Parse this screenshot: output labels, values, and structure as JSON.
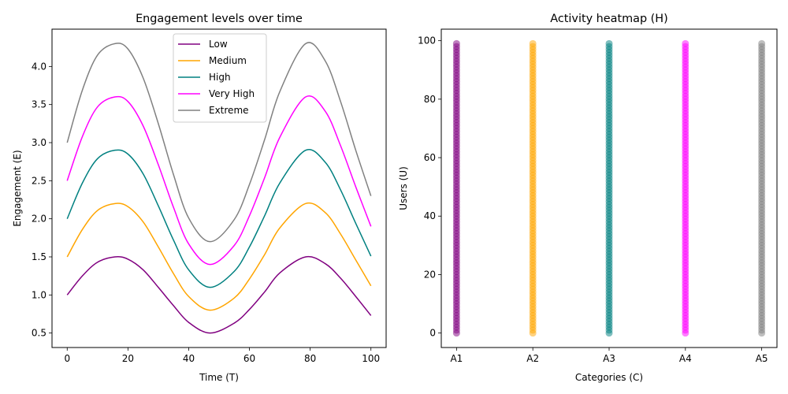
{
  "chart_data": [
    {
      "type": "line",
      "title": "Engagement levels over time",
      "xlabel": "Time (T)",
      "ylabel": "Engagement (E)",
      "xlim": [
        -5,
        105
      ],
      "ylim": [
        0.31,
        4.49
      ],
      "xticks": [
        0,
        20,
        40,
        60,
        80,
        100
      ],
      "yticks": [
        0.5,
        1.0,
        1.5,
        2.0,
        2.5,
        3.0,
        3.5,
        4.0
      ],
      "legend_position": "top-center",
      "grid": false,
      "x": [
        0,
        5,
        10,
        15.7,
        20,
        25,
        30,
        35,
        40,
        47,
        55,
        60,
        65,
        70,
        78.5,
        85,
        90,
        95,
        100
      ],
      "series": [
        {
          "name": "Low",
          "color": "#800080",
          "values": [
            1.0,
            1.25,
            1.43,
            1.5,
            1.47,
            1.33,
            1.1,
            0.86,
            0.64,
            0.5,
            0.63,
            0.81,
            1.04,
            1.29,
            1.5,
            1.41,
            1.22,
            0.98,
            0.73
          ]
        },
        {
          "name": "Medium",
          "color": "#FFA500",
          "values": [
            1.5,
            1.86,
            2.11,
            2.2,
            2.16,
            1.96,
            1.63,
            1.28,
            0.98,
            0.8,
            0.96,
            1.21,
            1.53,
            1.88,
            2.2,
            2.08,
            1.8,
            1.46,
            1.12
          ]
        },
        {
          "name": "High",
          "color": "#008080",
          "values": [
            2.0,
            2.47,
            2.79,
            2.9,
            2.85,
            2.59,
            2.17,
            1.72,
            1.33,
            1.1,
            1.31,
            1.63,
            2.04,
            2.47,
            2.9,
            2.74,
            2.38,
            1.94,
            1.51
          ]
        },
        {
          "name": "Very High",
          "color": "#FF00FF",
          "values": [
            2.5,
            3.08,
            3.47,
            3.6,
            3.54,
            3.22,
            2.71,
            2.15,
            1.67,
            1.4,
            1.65,
            2.04,
            2.54,
            3.07,
            3.6,
            3.41,
            2.96,
            2.42,
            1.9
          ]
        },
        {
          "name": "Extreme",
          "color": "#808080",
          "values": [
            3.0,
            3.69,
            4.15,
            4.3,
            4.23,
            3.85,
            3.25,
            2.58,
            2.01,
            1.7,
            1.99,
            2.45,
            3.04,
            3.67,
            4.3,
            4.07,
            3.54,
            2.9,
            2.3
          ]
        }
      ]
    },
    {
      "type": "scatter",
      "title": "Activity heatmap (H)",
      "xlabel": "Categories (C)",
      "ylabel": "Users (U)",
      "categories": [
        "A1",
        "A2",
        "A3",
        "A4",
        "A5"
      ],
      "ylim": [
        -4.95,
        103.95
      ],
      "yticks": [
        0,
        20,
        40,
        60,
        80,
        100
      ],
      "grid": false,
      "point_alpha": 0.5,
      "y_values": {
        "start": 0,
        "end": 99,
        "step": 1
      },
      "series_colors": [
        "#800080",
        "#FFA500",
        "#008080",
        "#FF00FF",
        "#808080"
      ]
    }
  ]
}
